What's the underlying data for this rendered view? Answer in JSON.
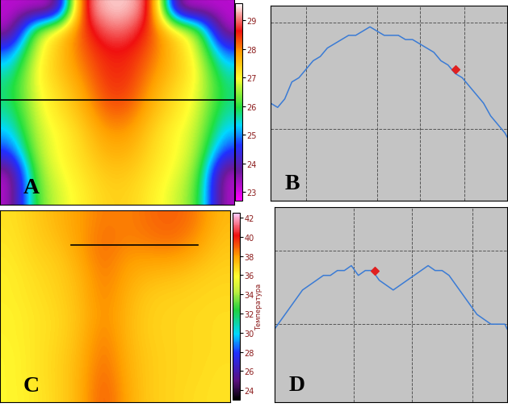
{
  "chart_data": [
    {
      "type": "heatmap",
      "label": "A",
      "tick_labels": false,
      "cells": [
        [
          23.2,
          23.2,
          23.2,
          28.8,
          29.4,
          29.4,
          28.8,
          23.2,
          23.2,
          23.2
        ],
        [
          23.2,
          26.5,
          27.3,
          28.3,
          29.0,
          29.0,
          28.3,
          27.3,
          26.5,
          23.2
        ],
        [
          24.8,
          26.8,
          27.5,
          28.2,
          28.6,
          28.6,
          28.2,
          27.5,
          26.8,
          24.8
        ],
        [
          25.5,
          27.0,
          27.5,
          28.0,
          28.5,
          28.5,
          28.0,
          27.5,
          27.0,
          25.5
        ],
        [
          25.8,
          26.9,
          27.3,
          27.8,
          28.4,
          28.4,
          27.8,
          27.3,
          26.9,
          25.8
        ],
        [
          25.6,
          26.8,
          27.2,
          27.6,
          28.2,
          28.2,
          27.6,
          27.2,
          26.8,
          25.6
        ],
        [
          25.2,
          26.7,
          27.0,
          27.4,
          27.9,
          27.9,
          27.4,
          27.0,
          26.7,
          25.2
        ],
        [
          24.5,
          26.6,
          27.0,
          27.3,
          27.7,
          27.7,
          27.3,
          27.0,
          26.6,
          24.5
        ],
        [
          23.2,
          26.4,
          26.9,
          27.2,
          27.5,
          27.5,
          27.2,
          26.9,
          26.4,
          23.2
        ],
        [
          23.2,
          26.2,
          26.8,
          27.1,
          27.4,
          27.4,
          27.1,
          26.8,
          26.2,
          23.2
        ]
      ],
      "colorbar_lim": [
        22.7,
        29.6
      ],
      "colorbar_ticks": [
        23,
        24,
        25,
        26,
        27,
        28,
        29
      ]
    },
    {
      "type": "line",
      "label": "B",
      "tick_labels": false,
      "grid": true,
      "x": [
        0,
        3,
        6,
        9,
        12,
        15,
        18,
        21,
        24,
        27,
        30,
        33,
        36,
        39,
        42,
        45,
        48,
        51,
        54,
        57,
        60,
        63,
        66,
        69,
        72,
        75,
        78,
        81,
        84,
        87,
        90,
        93,
        96,
        99,
        100
      ],
      "series": [
        {
          "color": "#3a7bd5",
          "values": [
            27.3,
            27.2,
            27.4,
            27.8,
            27.9,
            28.1,
            28.3,
            28.4,
            28.6,
            28.7,
            28.8,
            28.9,
            28.9,
            29.0,
            29.1,
            29.0,
            28.9,
            28.9,
            28.9,
            28.8,
            28.8,
            28.7,
            28.6,
            28.5,
            28.3,
            28.2,
            28.0,
            27.9,
            27.7,
            27.5,
            27.3,
            27.0,
            26.8,
            26.6,
            26.5
          ]
        },
        {
          "type": "scatter",
          "marker": "diamond",
          "color": "#e02020",
          "x": [
            78
          ],
          "values": [
            28.1
          ]
        }
      ],
      "xlim": [
        0,
        100
      ],
      "ylim": [
        25.0,
        29.6
      ],
      "xticks": [
        15,
        45,
        63,
        82
      ],
      "yticks": [
        26.7,
        29.2
      ]
    },
    {
      "type": "heatmap",
      "label": "C",
      "tick_labels": false,
      "cells": [
        [
          36.5,
          37.0,
          37.5,
          38.0,
          38.6,
          38.4,
          38.8,
          39.0,
          38.6,
          37.4
        ],
        [
          36.4,
          36.9,
          37.3,
          38.0,
          38.8,
          38.4,
          38.6,
          38.8,
          38.2,
          37.2
        ],
        [
          36.3,
          36.8,
          37.0,
          37.8,
          38.8,
          38.0,
          38.0,
          38.0,
          37.6,
          37.0
        ],
        [
          36.2,
          36.6,
          36.9,
          37.5,
          38.6,
          37.8,
          37.4,
          37.3,
          37.0,
          36.8
        ],
        [
          36.2,
          36.5,
          36.8,
          37.4,
          38.5,
          37.6,
          37.0,
          36.9,
          36.8,
          36.7
        ],
        [
          36.1,
          36.4,
          36.7,
          37.3,
          38.4,
          37.5,
          36.9,
          36.8,
          36.7,
          36.6
        ],
        [
          36.1,
          36.4,
          36.7,
          37.4,
          38.6,
          37.5,
          36.9,
          36.8,
          36.7,
          36.6
        ],
        [
          36.0,
          36.4,
          36.8,
          37.5,
          38.8,
          37.6,
          37.0,
          36.8,
          36.7,
          36.6
        ],
        [
          36.0,
          36.4,
          36.8,
          37.6,
          39.0,
          37.7,
          37.0,
          36.8,
          36.7,
          36.5
        ],
        [
          36.0,
          36.3,
          36.8,
          37.6,
          39.2,
          37.8,
          37.0,
          36.8,
          36.6,
          36.5
        ]
      ],
      "colorbar_lim": [
        23,
        42.5
      ],
      "colorbar_ticks": [
        24,
        26,
        28,
        30,
        32,
        34,
        36,
        38,
        40,
        42
      ],
      "colorbar_label": "Температура"
    },
    {
      "type": "line",
      "label": "D",
      "tick_labels": false,
      "grid": true,
      "x": [
        0,
        3,
        6,
        9,
        12,
        15,
        18,
        21,
        24,
        27,
        30,
        33,
        36,
        39,
        42,
        45,
        48,
        51,
        54,
        57,
        60,
        63,
        66,
        69,
        72,
        75,
        78,
        81,
        84,
        87,
        90,
        93,
        96,
        99,
        100
      ],
      "series": [
        {
          "color": "#3a7bd5",
          "values": [
            36.5,
            36.7,
            36.9,
            37.1,
            37.3,
            37.4,
            37.5,
            37.6,
            37.6,
            37.7,
            37.7,
            37.8,
            37.6,
            37.7,
            37.7,
            37.5,
            37.4,
            37.3,
            37.4,
            37.5,
            37.6,
            37.7,
            37.8,
            37.7,
            37.7,
            37.6,
            37.4,
            37.2,
            37.0,
            36.8,
            36.7,
            36.6,
            36.6,
            36.6,
            36.5
          ]
        },
        {
          "type": "scatter",
          "marker": "diamond",
          "color": "#e02020",
          "x": [
            43
          ],
          "values": [
            37.7
          ]
        }
      ],
      "xlim": [
        0,
        100
      ],
      "ylim": [
        35,
        39
      ],
      "xticks": [
        34,
        59,
        85
      ],
      "yticks": [
        36.6,
        38.1
      ]
    }
  ]
}
